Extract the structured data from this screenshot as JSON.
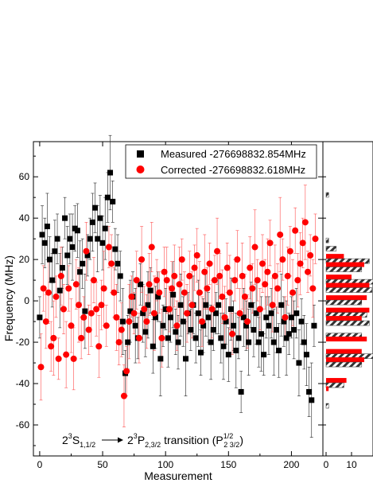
{
  "chart_data": {
    "type": "scatter",
    "xlabel": "Measurement",
    "ylabel": "Frequency (MHz)",
    "xlim": [
      -5,
      225
    ],
    "ylim": [
      -75,
      77
    ],
    "xticks": [
      0,
      50,
      100,
      150,
      200
    ],
    "yticks": [
      -60,
      -40,
      -20,
      0,
      20,
      40,
      60
    ],
    "legend_position": "top-right",
    "series": [
      {
        "name": "Measured -276698832.854MHz",
        "marker": "square",
        "color": "#000000",
        "x": [
          0,
          2,
          4,
          6,
          8,
          10,
          12,
          14,
          16,
          18,
          20,
          22,
          24,
          26,
          28,
          30,
          32,
          34,
          36,
          38,
          40,
          42,
          44,
          46,
          48,
          50,
          52,
          54,
          56,
          58,
          60,
          62,
          64,
          66,
          68,
          70,
          72,
          74,
          76,
          78,
          80,
          82,
          84,
          86,
          88,
          90,
          92,
          94,
          96,
          98,
          100,
          102,
          104,
          106,
          108,
          110,
          112,
          114,
          116,
          118,
          120,
          122,
          124,
          126,
          128,
          130,
          132,
          134,
          136,
          138,
          140,
          142,
          144,
          146,
          148,
          150,
          152,
          154,
          156,
          158,
          160,
          162,
          164,
          166,
          168,
          170,
          172,
          174,
          176,
          178,
          180,
          182,
          184,
          186,
          188,
          190,
          192,
          194,
          196,
          198,
          200,
          202,
          204,
          206,
          208,
          210,
          212,
          214,
          216,
          218
        ],
        "y": [
          -8,
          32,
          28,
          36,
          20,
          10,
          24,
          30,
          5,
          16,
          40,
          22,
          30,
          26,
          35,
          34,
          14,
          18,
          -5,
          22,
          30,
          38,
          45,
          30,
          40,
          28,
          35,
          50,
          62,
          48,
          25,
          18,
          12,
          -10,
          -35,
          -20,
          -5,
          2,
          -12,
          -18,
          8,
          -6,
          -15,
          -2,
          5,
          -22,
          -8,
          2,
          -28,
          -12,
          -4,
          -18,
          -8,
          3,
          -15,
          -20,
          -2,
          -10,
          -28,
          -6,
          -14,
          -2,
          -18,
          -6,
          -25,
          -12,
          -2,
          -8,
          -20,
          -14,
          -6,
          -2,
          -18,
          -22,
          -10,
          -26,
          -4,
          -12,
          -24,
          -18,
          -44,
          -8,
          -12,
          -20,
          -2,
          -14,
          -6,
          -20,
          -16,
          -26,
          -8,
          -12,
          -6,
          -20,
          -14,
          -24,
          -2,
          -10,
          -18,
          -16,
          -8,
          -14,
          -6,
          -30,
          -10,
          -20,
          -26,
          -44,
          -48,
          -12
        ]
      },
      {
        "name": "Corrected -276698832.618MHz",
        "marker": "circle",
        "color": "#ff0000",
        "x": [
          1,
          3,
          5,
          7,
          9,
          11,
          13,
          15,
          17,
          19,
          21,
          23,
          25,
          27,
          29,
          31,
          33,
          35,
          37,
          39,
          41,
          43,
          45,
          47,
          49,
          51,
          53,
          55,
          57,
          59,
          61,
          63,
          65,
          67,
          69,
          71,
          73,
          75,
          77,
          79,
          81,
          83,
          85,
          87,
          89,
          91,
          93,
          95,
          97,
          99,
          101,
          103,
          105,
          107,
          109,
          111,
          113,
          115,
          117,
          119,
          121,
          123,
          125,
          127,
          129,
          131,
          133,
          135,
          137,
          139,
          141,
          143,
          145,
          147,
          149,
          151,
          153,
          155,
          157,
          159,
          161,
          163,
          165,
          167,
          169,
          171,
          173,
          175,
          177,
          179,
          181,
          183,
          185,
          187,
          189,
          191,
          193,
          195,
          197,
          199,
          201,
          203,
          205,
          207,
          209,
          211,
          213,
          215,
          217,
          219
        ],
        "y": [
          -32,
          6,
          -10,
          4,
          -22,
          -18,
          2,
          -28,
          12,
          -4,
          -26,
          6,
          -12,
          -28,
          8,
          -2,
          -18,
          -8,
          24,
          -14,
          -6,
          10,
          -4,
          -22,
          -2,
          6,
          -12,
          26,
          18,
          4,
          -8,
          -20,
          -14,
          -46,
          -34,
          -10,
          2,
          -6,
          10,
          -18,
          20,
          -4,
          -10,
          8,
          26,
          -6,
          10,
          4,
          -18,
          14,
          10,
          -4,
          6,
          12,
          -12,
          8,
          20,
          4,
          -6,
          12,
          -2,
          16,
          22,
          4,
          -10,
          14,
          6,
          18,
          -4,
          10,
          24,
          12,
          2,
          -8,
          16,
          4,
          -16,
          10,
          20,
          -6,
          12,
          2,
          -10,
          16,
          6,
          26,
          10,
          -4,
          18,
          8,
          14,
          28,
          -2,
          12,
          6,
          32,
          20,
          -8,
          12,
          24,
          4,
          34,
          10,
          18,
          28,
          38,
          14,
          22,
          6,
          30
        ]
      }
    ],
    "histogram": {
      "xticks": [
        0,
        10
      ],
      "bins_y": [
        60,
        52,
        44,
        36,
        30,
        26,
        20,
        16,
        10,
        6,
        0,
        -6,
        -10,
        -16,
        -20,
        -26,
        -30,
        -36,
        -40,
        -44,
        -50
      ],
      "measured_counts": [
        0,
        1,
        0,
        0,
        1,
        4,
        17,
        14,
        19,
        18,
        14,
        16,
        17,
        14,
        0,
        19,
        14,
        0,
        7,
        0,
        1
      ],
      "corrected_counts": [
        0,
        0,
        0,
        0,
        0,
        0,
        7,
        15,
        10,
        17,
        16,
        17,
        14,
        0,
        16,
        14,
        15,
        0,
        8,
        1,
        0
      ]
    },
    "annotation": {
      "a": "2",
      "b": "3",
      "c": "S",
      "d": "1,1/2",
      "e": "2",
      "f": "3",
      "g": "P",
      "h": "2,3/2",
      "i": " transition (P",
      "j": "1/2",
      "k": "2 3/2",
      "l": ")"
    }
  }
}
